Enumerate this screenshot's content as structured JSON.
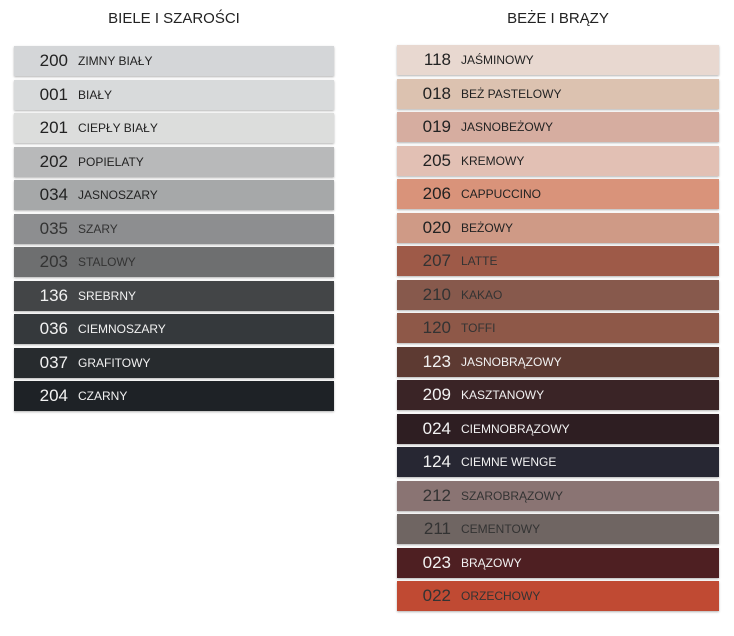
{
  "columns": [
    {
      "title": "BIELE I SZAROŚCI",
      "swatches": [
        {
          "code": "200",
          "name": "ZIMNY BIAŁY",
          "color": "#d4d6d8"
        },
        {
          "code": "001",
          "name": "BIAŁY",
          "color": "#d8dadb"
        },
        {
          "code": "201",
          "name": "CIEPŁY BIAŁY",
          "color": "#dcdddc"
        },
        {
          "code": "202",
          "name": "POPIELATY",
          "color": "#b8b9ba"
        },
        {
          "code": "034",
          "name": "JASNOSZARY",
          "color": "#a6a8a9"
        },
        {
          "code": "035",
          "name": "SZARY",
          "color": "#8d8e90"
        },
        {
          "code": "203",
          "name": "STALOWY",
          "color": "#6e6f70"
        },
        {
          "code": "136",
          "name": "SREBRNY",
          "color": "#434547"
        },
        {
          "code": "036",
          "name": "CIEMNOSZARY",
          "color": "#35393c"
        },
        {
          "code": "037",
          "name": "GRAFITOWY",
          "color": "#272b2e"
        },
        {
          "code": "204",
          "name": "CZARNY",
          "color": "#1e2226"
        }
      ]
    },
    {
      "title": "BEŻE I BRĄZY",
      "swatches": [
        {
          "code": "118",
          "name": "JAŚMINOWY",
          "color": "#e8d8d0"
        },
        {
          "code": "018",
          "name": "BEŻ PASTELOWY",
          "color": "#dcc2b0"
        },
        {
          "code": "019",
          "name": "JASNOBEŻOWY",
          "color": "#d6ada0"
        },
        {
          "code": "205",
          "name": "KREMOWY",
          "color": "#e2c0b4"
        },
        {
          "code": "206",
          "name": "CAPPUCCINO",
          "color": "#d9937a"
        },
        {
          "code": "020",
          "name": "BEŻOWY",
          "color": "#cf9a86"
        },
        {
          "code": "207",
          "name": "LATTE",
          "color": "#9e5a48"
        },
        {
          "code": "210",
          "name": "KAKAO",
          "color": "#87594c"
        },
        {
          "code": "120",
          "name": "TOFFI",
          "color": "#8e5848"
        },
        {
          "code": "123",
          "name": "JASNOBRĄZOWY",
          "color": "#5d3a32"
        },
        {
          "code": "209",
          "name": "KASZTANOWY",
          "color": "#3a2426"
        },
        {
          "code": "024",
          "name": "CIEMNOBRĄZOWY",
          "color": "#2e1e22"
        },
        {
          "code": "124",
          "name": "CIEMNE WENGE",
          "color": "#272733"
        },
        {
          "code": "212",
          "name": "SZAROBRĄZOWY",
          "color": "#8a7473"
        },
        {
          "code": "211",
          "name": "CEMENTOWY",
          "color": "#6f6562"
        },
        {
          "code": "023",
          "name": "BRĄZOWY",
          "color": "#4e1f22"
        },
        {
          "code": "022",
          "name": "ORZECHOWY",
          "color": "#c04a33"
        }
      ]
    }
  ]
}
